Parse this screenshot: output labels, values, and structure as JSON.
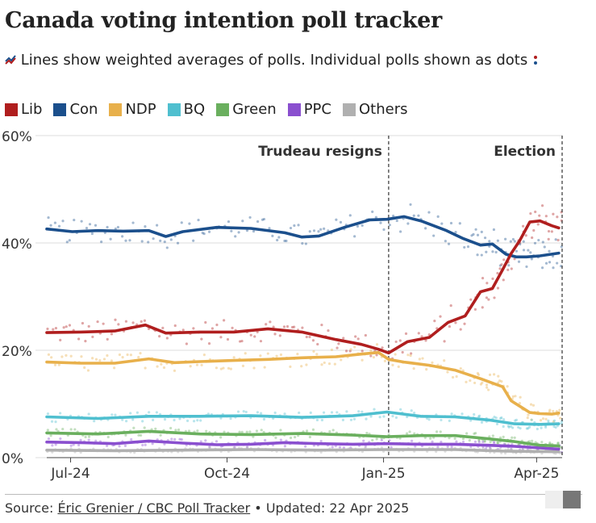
{
  "title": "Canada voting intention poll tracker",
  "subtitle": {
    "text_before": "Lines show weighted averages of polls. Individual polls shown as dots",
    "icon_line": "line-legend-icon",
    "icon_dots": "dots-legend-icon"
  },
  "legend": [
    {
      "label": "Lib",
      "color": "#b01e1e"
    },
    {
      "label": "Con",
      "color": "#1b4f8c"
    },
    {
      "label": "NDP",
      "color": "#e8b04b"
    },
    {
      "label": "BQ",
      "color": "#4fbfcf"
    },
    {
      "label": "Green",
      "color": "#6aaf5e"
    },
    {
      "label": "PPC",
      "color": "#8a4fcf"
    },
    {
      "label": "Others",
      "color": "#b0b0b0"
    }
  ],
  "chart_data": {
    "type": "line",
    "title": "Canada voting intention poll tracker",
    "xlabel": "",
    "ylabel": "",
    "ylim": [
      0,
      60
    ],
    "xlim": [
      0,
      303
    ],
    "y_ticks": [
      {
        "value": 0,
        "label": "0%"
      },
      {
        "value": 20,
        "label": "20%"
      },
      {
        "value": 40,
        "label": "40%"
      },
      {
        "value": 60,
        "label": "60%"
      }
    ],
    "x_ticks": [
      {
        "value": 14,
        "label": "Jul-24"
      },
      {
        "value": 106,
        "label": "Oct-24"
      },
      {
        "value": 198,
        "label": "Jan-25"
      },
      {
        "value": 288,
        "label": "Apr-25"
      }
    ],
    "annotations": [
      {
        "x": 201,
        "label": "Trudeau resigns",
        "anchor": "end"
      },
      {
        "x": 303,
        "label": "Election",
        "anchor": "end"
      }
    ],
    "series": [
      {
        "name": "Lib",
        "color": "#b01e1e",
        "x": [
          0,
          20,
          40,
          58,
          70,
          90,
          110,
          130,
          150,
          170,
          185,
          195,
          201,
          212,
          225,
          236,
          246,
          255,
          262,
          268,
          273,
          278,
          284,
          290,
          297,
          301
        ],
        "values": [
          23.3,
          23.4,
          23.6,
          24.7,
          23.2,
          23.4,
          23.4,
          24.0,
          23.4,
          22.0,
          21.1,
          20.2,
          19.5,
          21.6,
          22.4,
          25.2,
          26.4,
          30.9,
          31.5,
          35.0,
          38.0,
          40.4,
          43.9,
          44.1,
          43.2,
          42.8
        ]
      },
      {
        "name": "Con",
        "color": "#1b4f8c",
        "x": [
          0,
          15,
          30,
          45,
          60,
          70,
          80,
          100,
          120,
          140,
          150,
          160,
          175,
          190,
          200,
          210,
          220,
          235,
          245,
          255,
          262,
          270,
          276,
          282,
          290,
          301
        ],
        "values": [
          42.6,
          42.1,
          42.3,
          42.2,
          42.3,
          41.2,
          42.1,
          42.9,
          42.7,
          41.9,
          41.1,
          41.3,
          42.9,
          44.3,
          44.4,
          44.9,
          44.1,
          42.3,
          40.8,
          39.6,
          39.8,
          37.9,
          37.4,
          37.4,
          37.6,
          38.1
        ]
      },
      {
        "name": "NDP",
        "color": "#e8b04b",
        "x": [
          0,
          20,
          40,
          60,
          75,
          90,
          110,
          130,
          150,
          170,
          185,
          195,
          201,
          210,
          225,
          240,
          255,
          262,
          268,
          273,
          278,
          284,
          290,
          297,
          301
        ],
        "values": [
          17.8,
          17.6,
          17.6,
          18.4,
          17.7,
          17.9,
          18.1,
          18.3,
          18.6,
          18.8,
          19.3,
          19.6,
          18.3,
          17.8,
          17.2,
          16.3,
          14.7,
          13.9,
          13.2,
          10.6,
          9.6,
          8.4,
          8.2,
          8.1,
          8.3
        ]
      },
      {
        "name": "BQ",
        "color": "#4fbfcf",
        "x": [
          0,
          30,
          60,
          90,
          120,
          150,
          180,
          200,
          220,
          240,
          260,
          275,
          290,
          301
        ],
        "values": [
          7.6,
          7.3,
          7.7,
          7.7,
          7.8,
          7.5,
          7.8,
          8.5,
          7.7,
          7.6,
          7.0,
          6.3,
          6.2,
          6.3
        ]
      },
      {
        "name": "Green",
        "color": "#6aaf5e",
        "x": [
          0,
          30,
          60,
          90,
          120,
          150,
          180,
          200,
          220,
          240,
          260,
          275,
          290,
          301
        ],
        "values": [
          4.6,
          4.4,
          4.9,
          4.4,
          4.3,
          4.5,
          4.2,
          3.9,
          4.1,
          4.1,
          3.5,
          3.0,
          2.3,
          2.2
        ]
      },
      {
        "name": "PPC",
        "color": "#8a4fcf",
        "x": [
          0,
          20,
          40,
          60,
          80,
          100,
          120,
          140,
          160,
          180,
          200,
          220,
          240,
          260,
          275,
          290,
          301
        ],
        "values": [
          2.9,
          2.8,
          2.6,
          3.1,
          2.7,
          2.4,
          2.5,
          2.8,
          2.6,
          2.5,
          2.6,
          2.5,
          2.5,
          2.3,
          2.1,
          1.8,
          1.6
        ]
      },
      {
        "name": "Others",
        "color": "#b0b0b0",
        "x": [
          0,
          40,
          80,
          120,
          160,
          200,
          240,
          270,
          301
        ],
        "values": [
          1.4,
          1.3,
          1.4,
          1.5,
          1.4,
          1.5,
          1.5,
          1.2,
          1.1
        ]
      }
    ]
  },
  "footer": {
    "source_label": "Source:",
    "source_link": "Éric Grenier / CBC Poll Tracker",
    "separator": "•",
    "updated": "Updated: 22 Apr 2025"
  }
}
